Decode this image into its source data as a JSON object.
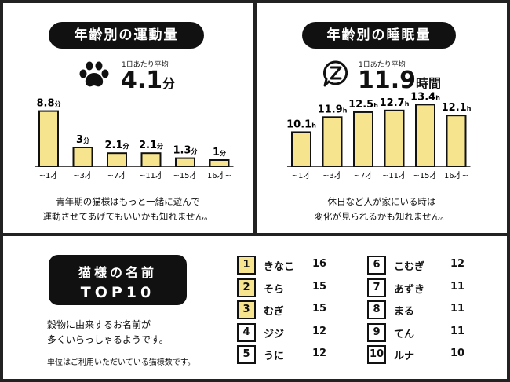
{
  "activity": {
    "title": "年齢別の運動量",
    "avg_label": "1日あたり平均",
    "avg_value": "4.1",
    "avg_unit": "分",
    "icon": "paw-icon",
    "caption_line1": "青年期の猫様はもっと一緒に遊んで",
    "caption_line2": "運動させてあげてもいいかも知れません。"
  },
  "sleep": {
    "title": "年齢別の睡眠量",
    "avg_label": "1日あたり平均",
    "avg_value": "11.9",
    "avg_unit": "時間",
    "icon": "sleep-z-icon",
    "caption_line1": "休日など人が家にいる時は",
    "caption_line2": "変化が見られるかも知れません。"
  },
  "chart_data": [
    {
      "type": "bar",
      "categories": [
        "~1才",
        "~3才",
        "~7才",
        "~11才",
        "~15才",
        "16才~"
      ],
      "values": [
        8.8,
        3,
        2.1,
        2.1,
        1.3,
        1
      ],
      "labels": [
        "8.8",
        "3",
        "2.1",
        "2.1",
        "1.3",
        "1"
      ],
      "unit": "分",
      "ylim": [
        0,
        10
      ]
    },
    {
      "type": "bar",
      "categories": [
        "~1才",
        "~3才",
        "~7才",
        "~11才",
        "~15才",
        "16才~"
      ],
      "values": [
        10.1,
        11.9,
        12.5,
        12.7,
        13.4,
        12.1
      ],
      "labels": [
        "10.1",
        "11.9",
        "12.5",
        "12.7",
        "13.4",
        "12.1"
      ],
      "unit": "h",
      "ylim": [
        6,
        14
      ]
    }
  ],
  "names": {
    "title_line1": "猫様の名前",
    "title_line2": "TOP10",
    "note_line1": "穀物に由来するお名前が",
    "note_line2": "多くいらっしゃるようです。",
    "note_small": "単位はご利用いただいている猫様数です。",
    "highlight_color": "#f6e48f",
    "ranking": [
      {
        "rank": "1",
        "name": "きなこ",
        "count": "16"
      },
      {
        "rank": "2",
        "name": "そら",
        "count": "15"
      },
      {
        "rank": "3",
        "name": "むぎ",
        "count": "15"
      },
      {
        "rank": "4",
        "name": "ジジ",
        "count": "12"
      },
      {
        "rank": "5",
        "name": "うに",
        "count": "12"
      },
      {
        "rank": "6",
        "name": "こむぎ",
        "count": "12"
      },
      {
        "rank": "7",
        "name": "あずき",
        "count": "11"
      },
      {
        "rank": "8",
        "name": "まる",
        "count": "11"
      },
      {
        "rank": "9",
        "name": "てん",
        "count": "11"
      },
      {
        "rank": "10",
        "name": "ルナ",
        "count": "10"
      }
    ]
  }
}
